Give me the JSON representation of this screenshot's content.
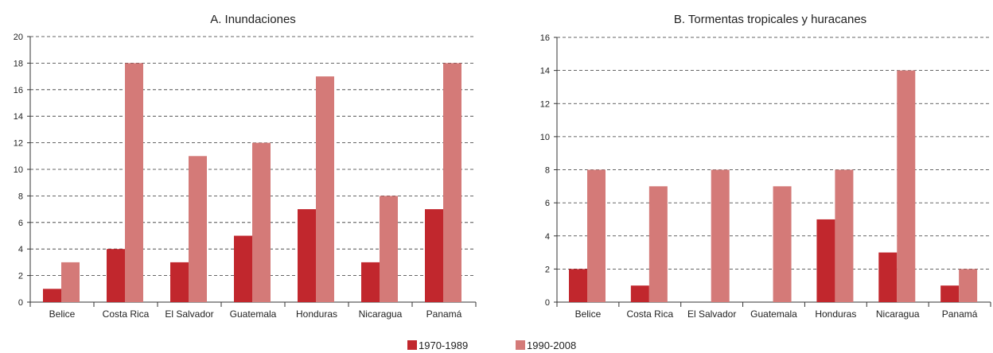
{
  "chart_data": [
    {
      "type": "bar",
      "title": "A. Inundaciones",
      "categories": [
        "Belice",
        "Costa Rica",
        "El Salvador",
        "Guatemala",
        "Honduras",
        "Nicaragua",
        "Panamá"
      ],
      "series": [
        {
          "name": "1970-1989",
          "values": [
            1,
            4,
            3,
            5,
            7,
            3,
            7
          ]
        },
        {
          "name": "1990-2008",
          "values": [
            3,
            18,
            11,
            12,
            17,
            8,
            18
          ]
        }
      ],
      "ylim": [
        0,
        20
      ],
      "yticks": [
        0,
        2,
        4,
        6,
        8,
        10,
        12,
        14,
        16,
        18,
        20
      ],
      "grid": true
    },
    {
      "type": "bar",
      "title": "B. Tormentas tropicales y huracanes",
      "categories": [
        "Belice",
        "Costa Rica",
        "El Salvador",
        "Guatemala",
        "Honduras",
        "Nicaragua",
        "Panamá"
      ],
      "series": [
        {
          "name": "1970-1989",
          "values": [
            2,
            1,
            0,
            0,
            5,
            3,
            1
          ]
        },
        {
          "name": "1990-2008",
          "values": [
            8,
            7,
            8,
            7,
            8,
            14,
            2
          ]
        }
      ],
      "ylim": [
        0,
        16
      ],
      "yticks": [
        0,
        2,
        4,
        6,
        8,
        10,
        12,
        14,
        16
      ],
      "grid": true
    }
  ],
  "legend": [
    {
      "label": "1970-1989",
      "color": "#c1272d"
    },
    {
      "label": "1990-2008",
      "color": "#d47a78"
    }
  ]
}
